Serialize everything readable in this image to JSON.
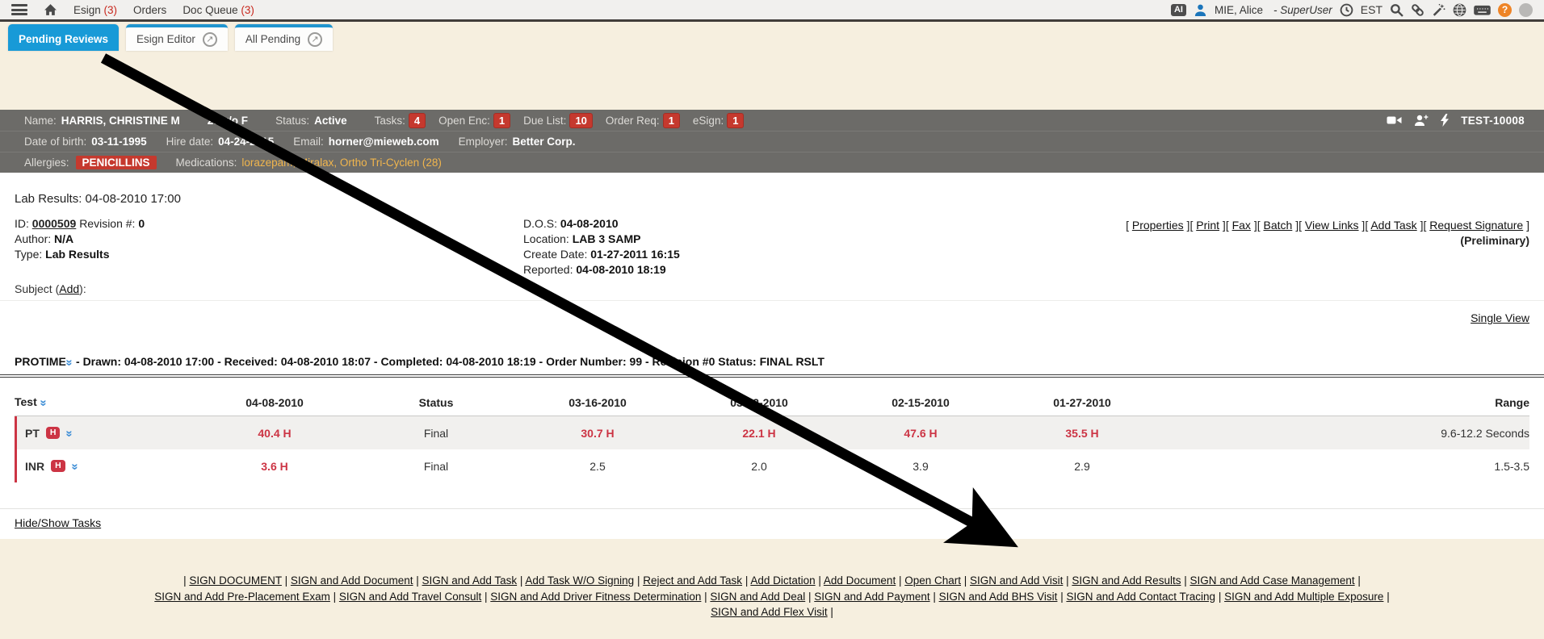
{
  "topnav": {
    "items": [
      {
        "label": "Esign",
        "count": "(3)"
      },
      {
        "label": "Orders",
        "count": ""
      },
      {
        "label": "Doc Queue",
        "count": "(3)"
      }
    ],
    "ai_badge": "AI",
    "user_name": "MIE, Alice",
    "user_role": "- SuperUser",
    "timezone": "EST"
  },
  "tabs": [
    {
      "label": "Pending Reviews",
      "active": true,
      "popout": false
    },
    {
      "label": "Esign Editor",
      "active": false,
      "popout": true
    },
    {
      "label": "All Pending",
      "active": false,
      "popout": true
    }
  ],
  "patient": {
    "name_label": "Name:",
    "name": "HARRIS, CHRISTINE M",
    "age_sex": "29 y/o F",
    "status_label": "Status:",
    "status": "Active",
    "counters": [
      {
        "label": "Tasks:",
        "value": "4"
      },
      {
        "label": "Open Enc:",
        "value": "1"
      },
      {
        "label": "Due List:",
        "value": "10"
      },
      {
        "label": "Order Req:",
        "value": "1"
      },
      {
        "label": "eSign:",
        "value": "1"
      }
    ],
    "chart_id": "TEST-10008",
    "dob_label": "Date of birth:",
    "dob": "03-11-1995",
    "hire_label": "Hire date:",
    "hire": "04-24-2015",
    "email_label": "Email:",
    "email": "horner@mieweb.com",
    "employer_label": "Employer:",
    "employer": "Better Corp.",
    "allergies_label": "Allergies:",
    "allergy": "PENICILLINS",
    "medications_label": "Medications:",
    "medications": "lorazepam, Miralax, Ortho Tri-Cyclen (28)"
  },
  "document": {
    "title": "Lab Results: 04-08-2010 17:00",
    "id_label": "ID:",
    "id": "0000509",
    "revision_label": "Revision #:",
    "revision": "0",
    "author_label": "Author:",
    "author": "N/A",
    "type_label": "Type:",
    "type": "Lab Results",
    "dos_label": "D.O.S:",
    "dos": "04-08-2010",
    "location_label": "Location:",
    "location": "LAB 3 SAMP",
    "create_label": "Create Date:",
    "create": "01-27-2011 16:15",
    "reported_label": "Reported:",
    "reported": "04-08-2010 18:19",
    "actions": [
      "Properties",
      "Print",
      "Fax",
      "Batch",
      "View Links",
      "Add Task",
      "Request Signature"
    ],
    "preliminary": "(Preliminary)",
    "subject_prefix": "Subject (",
    "subject_add": "Add",
    "subject_suffix": "):",
    "single_view": "Single View"
  },
  "results": {
    "panel": "PROTIME",
    "panel_meta": " - Drawn: 04-08-2010 17:00 - Received: 04-08-2010 18:07 - Completed: 04-08-2010 18:19 - Order Number: 99 - Revision #0 Status: FINAL RSLT",
    "columns": [
      "Test",
      "04-08-2010",
      "Status",
      "03-16-2010",
      "03-02-2010",
      "02-15-2010",
      "01-27-2010",
      "Range"
    ],
    "rows": [
      {
        "test": "PT",
        "flag": "H",
        "values": [
          "40.4 H",
          "Final",
          "30.7 H",
          "22.1 H",
          "47.6 H",
          "35.5 H"
        ],
        "abnormal": [
          true,
          false,
          true,
          true,
          true,
          true
        ],
        "range": "9.6-12.2 Seconds",
        "zebra": true
      },
      {
        "test": "INR",
        "flag": "H",
        "values": [
          "3.6 H",
          "Final",
          "2.5",
          "2.0",
          "3.9",
          "2.9"
        ],
        "abnormal": [
          true,
          false,
          false,
          false,
          false,
          false
        ],
        "range": "1.5-3.5",
        "zebra": false
      }
    ],
    "hide_show": "Hide/Show Tasks"
  },
  "footer": {
    "line1": [
      "SIGN DOCUMENT",
      "SIGN and Add Document",
      "SIGN and Add Task",
      "Add Task W/O Signing",
      "Reject and Add Task",
      "Add Dictation",
      "Add Document",
      "Open Chart",
      "SIGN and Add Visit",
      "SIGN and Add Results",
      "SIGN and Add Case Management"
    ],
    "line2": [
      "SIGN and Add Pre-Placement Exam",
      "SIGN and Add Travel Consult",
      "SIGN and Add Driver Fitness Determination",
      "SIGN and Add Deal",
      "SIGN and Add Payment",
      "SIGN and Add BHS Visit",
      "SIGN and Add Contact Tracing",
      "SIGN and Add Multiple Exposure"
    ],
    "line3": [
      "SIGN and Add Flex Visit"
    ]
  },
  "annotation": {
    "arrow_from": "Pending Reviews tab",
    "arrow_to": "SIGN and Add Visit link"
  },
  "colors": {
    "tab_blue": "#189ad7",
    "badge_red": "#c5392e",
    "abnormal_red": "#cc3444",
    "medication_gold": "#f0b54d",
    "patient_gray": "#6c6b68",
    "help_orange": "#ee8426"
  }
}
